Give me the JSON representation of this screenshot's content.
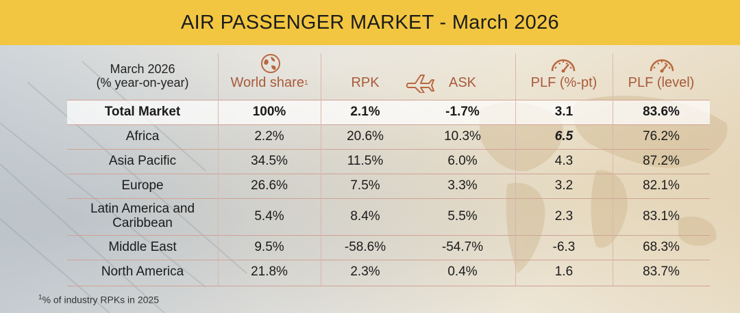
{
  "title": "AIR PASSENGER MARKET - March 2026",
  "colors": {
    "title_bar": "#f2c640",
    "header_text": "#a85a3a",
    "icon": "#b8683f"
  },
  "icons": [
    "globe-icon",
    "airplane-icon",
    "gauge-icon"
  ],
  "chart_data": {
    "type": "table",
    "row_header": {
      "line1": "March 2026",
      "line2": "(% year-on-year)"
    },
    "columns": [
      {
        "label": "World share",
        "sup": "1"
      },
      {
        "label": "RPK",
        "sup": ""
      },
      {
        "label": "ASK",
        "sup": ""
      },
      {
        "label": "PLF (%-pt)",
        "sup": ""
      },
      {
        "label": "PLF (level)",
        "sup": ""
      }
    ],
    "rows": [
      {
        "region": [
          "Total Market"
        ],
        "values": [
          "100%",
          "2.1%",
          "-1.7%",
          "3.1",
          "83.6%"
        ]
      },
      {
        "region": [
          "Africa"
        ],
        "values": [
          "2.2%",
          "20.6%",
          "10.3%",
          "6.5",
          "76.2%"
        ]
      },
      {
        "region": [
          "Asia Pacific"
        ],
        "values": [
          "34.5%",
          "11.5%",
          "6.0%",
          "4.3",
          "87.2%"
        ]
      },
      {
        "region": [
          "Europe"
        ],
        "values": [
          "26.6%",
          "7.5%",
          "3.3%",
          "3.2",
          "82.1%"
        ]
      },
      {
        "region": [
          "Latin America and",
          "Caribbean"
        ],
        "values": [
          "5.4%",
          "8.4%",
          "5.5%",
          "2.3",
          "83.1%"
        ]
      },
      {
        "region": [
          "Middle East"
        ],
        "values": [
          "9.5%",
          "-58.6%",
          "-54.7%",
          "-6.3",
          "68.3%"
        ]
      },
      {
        "region": [
          "North America"
        ],
        "values": [
          "21.8%",
          "2.3%",
          "0.4%",
          "1.6",
          "83.7%"
        ]
      }
    ],
    "highlight": {
      "bold_row": "Total Market",
      "emphasis_cell": {
        "row": "Africa",
        "column": "PLF (%-pt)"
      }
    },
    "footnote": {
      "sup": "1",
      "text": "% of industry RPKs in 2025"
    }
  }
}
